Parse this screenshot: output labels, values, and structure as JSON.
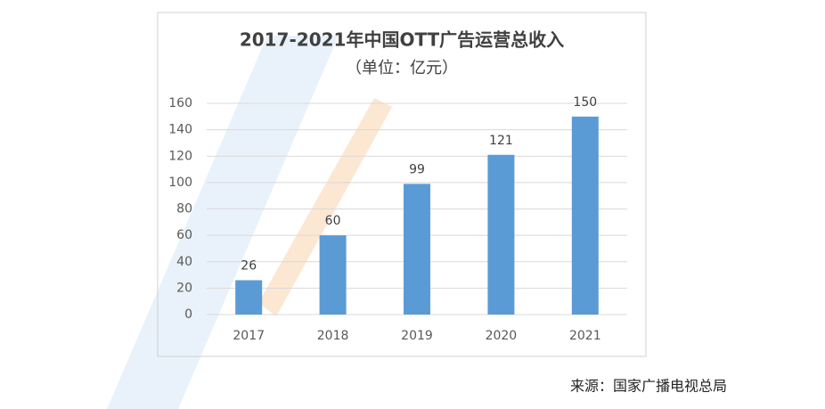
{
  "chart_data": {
    "type": "bar",
    "title": "2017-2021年中国OTT广告运营总收入",
    "subtitle": "（单位：亿元）",
    "categories": [
      "2017",
      "2018",
      "2019",
      "2020",
      "2021"
    ],
    "values": [
      26,
      60,
      99,
      121,
      150
    ],
    "color": "#5b9bd5",
    "ylim": [
      0,
      160
    ],
    "yticks": [
      0,
      20,
      40,
      60,
      80,
      100,
      120,
      140,
      160
    ],
    "grid": true,
    "source": "来源：国家广播电视总局"
  }
}
